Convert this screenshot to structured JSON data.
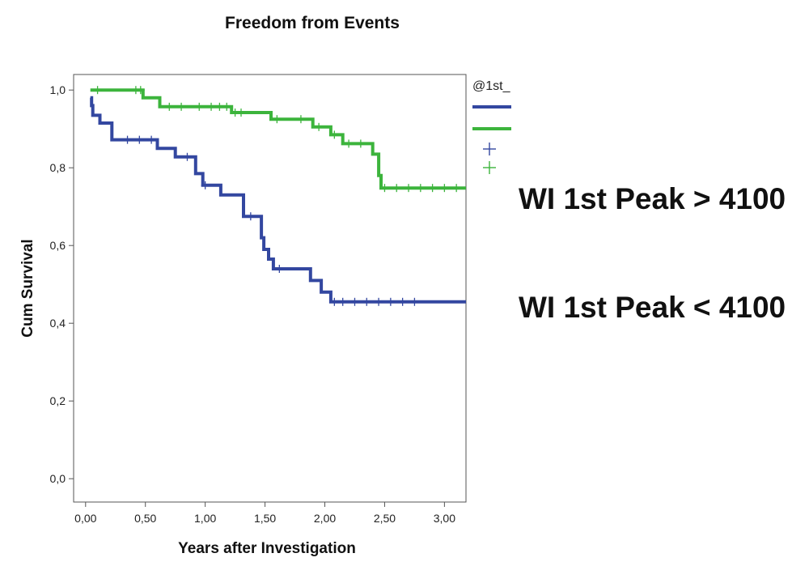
{
  "chart_data": {
    "type": "line",
    "title": "Freedom from Events",
    "xlabel": "Years after Investigation",
    "ylabel": "Cum Survival",
    "xlim": [
      -0.1,
      3.18
    ],
    "ylim": [
      -0.06,
      1.04
    ],
    "x_ticks": [
      "0,00",
      "0,50",
      "1,00",
      "1,50",
      "2,00",
      "2,50",
      "3,00"
    ],
    "x_tick_values": [
      0,
      0.5,
      1.0,
      1.5,
      2.0,
      2.5,
      3.0
    ],
    "y_ticks": [
      "0,0",
      "0,2",
      "0,4",
      "0,6",
      "0,8",
      "1,0"
    ],
    "y_tick_values": [
      0,
      0.2,
      0.4,
      0.6,
      0.8,
      1.0
    ],
    "legend_title": "@1st_",
    "colors": {
      "blue": "#3347a0",
      "green": "#3cb43c"
    },
    "series": [
      {
        "name": "WI 1st Peak < 4100",
        "color": "#3347a0",
        "steps": [
          [
            0.04,
            0.98
          ],
          [
            0.05,
            0.96
          ],
          [
            0.06,
            0.935
          ],
          [
            0.12,
            0.915
          ],
          [
            0.22,
            0.872
          ],
          [
            0.6,
            0.85
          ],
          [
            0.75,
            0.828
          ],
          [
            0.92,
            0.785
          ],
          [
            0.98,
            0.755
          ],
          [
            1.13,
            0.73
          ],
          [
            1.32,
            0.675
          ],
          [
            1.47,
            0.62
          ],
          [
            1.49,
            0.59
          ],
          [
            1.53,
            0.565
          ],
          [
            1.57,
            0.54
          ],
          [
            1.88,
            0.51
          ],
          [
            1.97,
            0.48
          ],
          [
            2.05,
            0.455
          ],
          [
            3.18,
            0.455
          ]
        ],
        "censored": [
          [
            0.35,
            0.872
          ],
          [
            0.45,
            0.872
          ],
          [
            0.55,
            0.872
          ],
          [
            0.85,
            0.828
          ],
          [
            1.0,
            0.755
          ],
          [
            1.38,
            0.675
          ],
          [
            1.62,
            0.54
          ],
          [
            2.08,
            0.455
          ],
          [
            2.15,
            0.455
          ],
          [
            2.25,
            0.455
          ],
          [
            2.35,
            0.455
          ],
          [
            2.45,
            0.455
          ],
          [
            2.55,
            0.455
          ],
          [
            2.65,
            0.455
          ],
          [
            2.75,
            0.455
          ]
        ]
      },
      {
        "name": "WI 1st Peak > 4100",
        "color": "#3cb43c",
        "steps": [
          [
            0.04,
            1.0
          ],
          [
            0.48,
            0.98
          ],
          [
            0.62,
            0.957
          ],
          [
            1.22,
            0.942
          ],
          [
            1.55,
            0.925
          ],
          [
            1.9,
            0.905
          ],
          [
            2.05,
            0.885
          ],
          [
            2.15,
            0.862
          ],
          [
            2.4,
            0.835
          ],
          [
            2.45,
            0.78
          ],
          [
            2.47,
            0.748
          ],
          [
            3.18,
            0.748
          ]
        ],
        "censored": [
          [
            0.1,
            1.0
          ],
          [
            0.42,
            1.0
          ],
          [
            0.46,
            1.0
          ],
          [
            0.7,
            0.957
          ],
          [
            0.8,
            0.957
          ],
          [
            0.95,
            0.957
          ],
          [
            1.05,
            0.957
          ],
          [
            1.12,
            0.957
          ],
          [
            1.18,
            0.957
          ],
          [
            1.25,
            0.942
          ],
          [
            1.3,
            0.942
          ],
          [
            1.6,
            0.925
          ],
          [
            1.8,
            0.925
          ],
          [
            1.95,
            0.905
          ],
          [
            2.08,
            0.885
          ],
          [
            2.2,
            0.862
          ],
          [
            2.3,
            0.862
          ],
          [
            2.5,
            0.748
          ],
          [
            2.6,
            0.748
          ],
          [
            2.7,
            0.748
          ],
          [
            2.8,
            0.748
          ],
          [
            2.9,
            0.748
          ],
          [
            3.0,
            0.748
          ],
          [
            3.1,
            0.748
          ]
        ]
      }
    ]
  }
}
